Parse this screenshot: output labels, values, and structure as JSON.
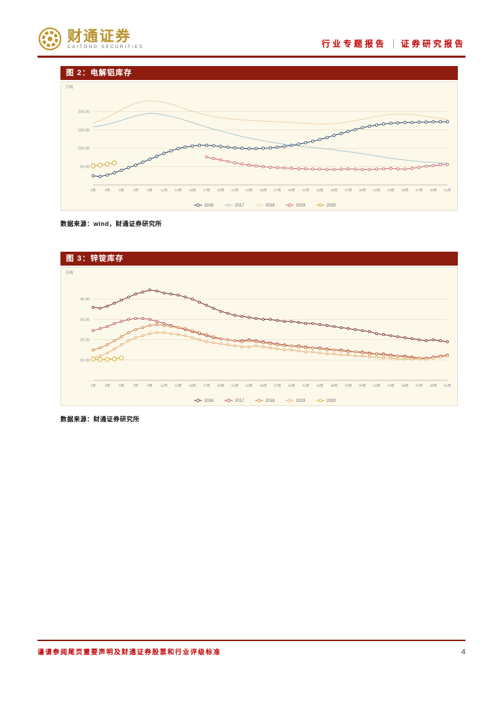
{
  "header": {
    "logo_title": "财通证券",
    "logo_subtitle": "CAITONG SECURITIES",
    "report_type": "行业专题报告",
    "report_category": "证券研究报告"
  },
  "icons": {
    "logo_emblem": "caitong-gold-coin-flower"
  },
  "colors": {
    "accent_dark_red": "#8E1C0F",
    "text_red": "#C00000",
    "logo_gold": "#B8922B",
    "chart_background": "#FCF8EA"
  },
  "figures": [
    {
      "id": "figure-2",
      "title": "图 2：电解铝库存",
      "source": "数据来源：wind，财通证券研究所"
    },
    {
      "id": "figure-3",
      "title": "图 3：锌锭库存",
      "source": "数据来源：财通证券研究所"
    }
  ],
  "footer": {
    "disclaimer": "谨请参阅尾页重要声明及财通证券股票和行业评级标准",
    "page_number": "4"
  },
  "chart_data": [
    {
      "type": "line",
      "title": "电解铝库存",
      "unit": "万吨",
      "x_count": 51,
      "x_tick_labels": [
        "1周",
        "3周",
        "5周",
        "7周",
        "9周",
        "11周",
        "13周",
        "15周",
        "17周",
        "19周",
        "21周",
        "23周",
        "25周",
        "27周",
        "29周",
        "31周",
        "33周",
        "35周",
        "37周",
        "39周",
        "41周",
        "43周",
        "45周",
        "47周",
        "49周",
        "51周"
      ],
      "ylim": [
        0,
        250
      ],
      "yticks": [
        0,
        50,
        100,
        150,
        200
      ],
      "ytick_labels": [
        "-",
        "50.00",
        "100.00",
        "150.00",
        "200.00"
      ],
      "grid": true,
      "legend_position": "bottom",
      "series": [
        {
          "name": "2016",
          "color": "#24406B",
          "marker": true,
          "marker_size": 1.9,
          "width": 1,
          "start_week": 1,
          "values": [
            25,
            23,
            27,
            33,
            40,
            47,
            54,
            62,
            70,
            78,
            86,
            93,
            99,
            103,
            106,
            108,
            108,
            107,
            105,
            103,
            101,
            100,
            99,
            99,
            100,
            101,
            103,
            105,
            108,
            111,
            115,
            119,
            124,
            129,
            135,
            140,
            146,
            151,
            156,
            160,
            163,
            166,
            168,
            169,
            170,
            170,
            171,
            171,
            172,
            172,
            172
          ]
        },
        {
          "name": "2017",
          "color": "#9FC2CC",
          "marker": false,
          "marker_size": 1.4,
          "width": 0.9,
          "start_week": 1,
          "values": [
            158,
            161,
            165,
            170,
            176,
            182,
            188,
            192,
            195,
            194,
            191,
            187,
            182,
            176,
            170,
            164,
            158,
            152,
            147,
            142,
            137,
            132,
            128,
            124,
            120,
            117,
            114,
            111,
            108,
            106,
            104,
            102,
            100,
            98,
            96,
            93,
            91,
            88,
            85,
            82,
            79,
            76,
            73,
            70,
            68,
            66,
            64,
            62,
            61,
            60,
            59
          ]
        },
        {
          "name": "2018",
          "color": "#EBCFA5",
          "marker": false,
          "marker_size": 1.4,
          "width": 0.9,
          "start_week": 1,
          "values": [
            168,
            175,
            184,
            194,
            205,
            215,
            222,
            227,
            229,
            228,
            225,
            220,
            214,
            207,
            201,
            195,
            190,
            186,
            183,
            181,
            179,
            177,
            176,
            175,
            174,
            173,
            172,
            171,
            170,
            169,
            168,
            167,
            166,
            166,
            167,
            169,
            172,
            175,
            179,
            183,
            187,
            190,
            192,
            193,
            193,
            192,
            190,
            187,
            184,
            181,
            178
          ]
        },
        {
          "name": "2019",
          "color": "#C2566E",
          "marker": true,
          "marker_size": 1.8,
          "width": 0.9,
          "start_week": 17,
          "values": [
            76,
            72,
            68,
            64,
            60,
            57,
            54,
            52,
            50,
            48,
            47,
            46,
            45,
            44,
            44,
            43,
            43,
            42,
            42,
            43,
            44,
            43,
            42,
            42,
            43,
            44,
            45,
            44,
            43,
            45,
            48,
            51,
            53,
            55,
            56
          ]
        },
        {
          "name": "2020",
          "color": "#CBA22A",
          "marker": true,
          "marker_size": 3,
          "width": 1,
          "start_week": 1,
          "values": [
            52,
            54,
            57,
            60
          ]
        }
      ]
    },
    {
      "type": "line",
      "title": "锌锭库存",
      "unit": "万吨",
      "x_count": 51,
      "x_tick_labels": [
        "1周",
        "3周",
        "5周",
        "7周",
        "9周",
        "11周",
        "13周",
        "15周",
        "17周",
        "19周",
        "21周",
        "23周",
        "25周",
        "27周",
        "29周",
        "31周",
        "33周",
        "35周",
        "37周",
        "39周",
        "41周",
        "43周",
        "45周",
        "47周",
        "49周",
        "51周"
      ],
      "ylim": [
        0,
        50
      ],
      "yticks": [
        0,
        10,
        20,
        30,
        40
      ],
      "ytick_labels": [
        "-",
        "10.00",
        "20.00",
        "30.00",
        "40.00"
      ],
      "grid": true,
      "legend_position": "bottom",
      "series": [
        {
          "name": "2016",
          "color": "#6F2B36",
          "marker": true,
          "marker_size": 1.6,
          "width": 1,
          "start_week": 1,
          "values": [
            36,
            35.5,
            36.5,
            38,
            39.5,
            41,
            42.5,
            43.5,
            44.5,
            44,
            43,
            42.5,
            42,
            41,
            40,
            38.5,
            37,
            35.5,
            34,
            33,
            32,
            31.5,
            31,
            30.5,
            30,
            30,
            29.5,
            29,
            29,
            28.5,
            28,
            28,
            27.5,
            27,
            26.5,
            26,
            25.5,
            25,
            24.5,
            24,
            23,
            22.5,
            22,
            21.5,
            21,
            20.5,
            20,
            19.5,
            20,
            19.5,
            19
          ]
        },
        {
          "name": "2017",
          "color": "#B04A52",
          "marker": true,
          "marker_size": 1.6,
          "width": 0.9,
          "start_week": 1,
          "values": [
            24.5,
            25.5,
            26.5,
            28,
            29,
            30,
            30.5,
            30.5,
            30,
            29,
            28,
            27,
            26,
            25,
            24,
            23,
            22,
            21,
            20.5,
            20,
            19.5,
            19.5,
            20,
            19.5,
            19,
            18.5,
            18,
            17.5,
            17,
            17,
            16.5,
            16,
            16,
            15.5,
            15,
            15,
            14.5,
            14,
            14,
            13.5,
            13,
            13,
            12.5,
            12,
            12,
            11.5,
            11,
            11,
            11.5,
            12,
            12.5
          ]
        },
        {
          "name": "2018",
          "color": "#C97C42",
          "marker": true,
          "marker_size": 1.6,
          "width": 0.9,
          "start_week": 1,
          "values": [
            15,
            16,
            17.5,
            19.5,
            21.5,
            23.5,
            25,
            26,
            27,
            27.5,
            27,
            26.5,
            26,
            25.5,
            24.5,
            23.5,
            22.5,
            21.5,
            20.5,
            20,
            19.5,
            19,
            19.5,
            19,
            18.5,
            18,
            17.5,
            17,
            17,
            16.5,
            16,
            16,
            15.5,
            15,
            15,
            14.5,
            14,
            14,
            13.5,
            13,
            13,
            12.5,
            12,
            12,
            11.5,
            11,
            11,
            10.5,
            11,
            11.5,
            12
          ]
        },
        {
          "name": "2019",
          "color": "#E2A86B",
          "marker": true,
          "marker_size": 1.6,
          "width": 0.9,
          "start_week": 1,
          "values": [
            11,
            12,
            13.5,
            15.5,
            17.5,
            19.5,
            21,
            22,
            23,
            23.5,
            23.5,
            23,
            22.5,
            22,
            21,
            20,
            19,
            18.5,
            18,
            17.5,
            17,
            16.5,
            16.5,
            17,
            16.5,
            16,
            15.5,
            15,
            15,
            14.5,
            14,
            14,
            13.5,
            13,
            13,
            12.5,
            12.5,
            12,
            12,
            11.5,
            11.5,
            11,
            11,
            10.5,
            10.5,
            10.5,
            10.5,
            10.5,
            11,
            11.5,
            12
          ]
        },
        {
          "name": "2020",
          "color": "#D4A52A",
          "marker": true,
          "marker_size": 3,
          "width": 1,
          "start_week": 1,
          "values": [
            10.5,
            10.2,
            10.3,
            10.6,
            11
          ]
        }
      ]
    }
  ]
}
